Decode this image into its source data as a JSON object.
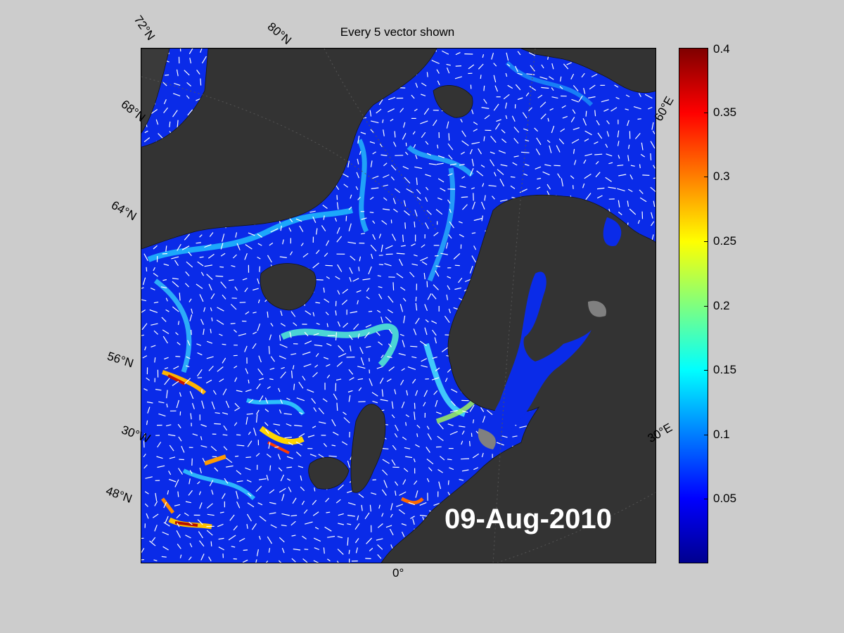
{
  "title": "Every 5 vector shown",
  "date_stamp": "09-Aug-2010",
  "graticule_labels": {
    "lat_72": "72°N",
    "lat_80": "80°N",
    "lat_68": "68°N",
    "lat_64": "64°N",
    "lat_56": "56°N",
    "lon_30w": "30°W",
    "lat_48": "48°N",
    "lon_0": "0°",
    "lon_30e": "30°E",
    "lon_60e": "60°E"
  },
  "colorbar": {
    "range": [
      0,
      0.4
    ],
    "ticks": [
      "0.4",
      "0.35",
      "0.3",
      "0.25",
      "0.2",
      "0.15",
      "0.1",
      "0.05"
    ],
    "tick_values": [
      0.4,
      0.35,
      0.3,
      0.25,
      0.2,
      0.15,
      0.1,
      0.05
    ],
    "colormap": "jet"
  },
  "colors": {
    "background": "#cccccc",
    "land": "#333333",
    "ice": "#888888",
    "ocean_low": "#0a2be8",
    "vectors": "#ffffff"
  }
}
